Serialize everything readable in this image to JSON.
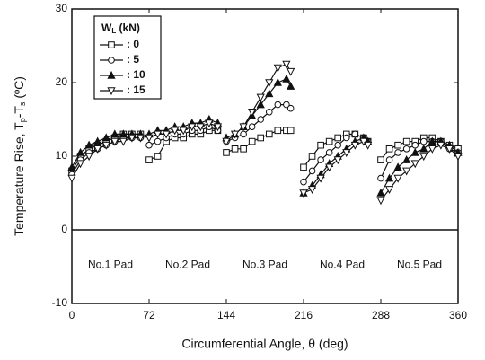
{
  "chart_data": {
    "type": "line",
    "x_label": "Circumferential Angle, θ (deg)",
    "y_label": {
      "a": "Temperature Rise, T",
      "sub1": "p",
      "b": "-T",
      "sub2": "s",
      "c": " (ºC)"
    },
    "legend_title": {
      "main": "W",
      "sub": "L",
      "rest": " (kN)"
    },
    "legend": "upper left",
    "annotations": [
      "No.1 Pad",
      "No.2 Pad",
      "No.3 Pad",
      "No.4 Pad",
      "No.5 Pad"
    ],
    "xlim": [
      0,
      360
    ],
    "xticks": [
      0,
      72,
      144,
      216,
      288,
      360
    ],
    "ylim": [
      -10,
      30
    ],
    "yticks": [
      -10,
      0,
      10,
      20,
      30
    ],
    "x": [
      0,
      8,
      16,
      24,
      32,
      40,
      48,
      56,
      64,
      null,
      72,
      80,
      88,
      96,
      104,
      112,
      120,
      128,
      136,
      null,
      144,
      152,
      160,
      168,
      176,
      184,
      192,
      200,
      204,
      null,
      216,
      224,
      232,
      240,
      248,
      256,
      264,
      272,
      276,
      null,
      288,
      296,
      304,
      312,
      320,
      328,
      336,
      344,
      352,
      360
    ],
    "series": [
      {
        "name": ": 0",
        "color": "#111111",
        "marker": "square",
        "values": [
          8,
          10,
          11,
          11.5,
          12,
          12.5,
          13,
          13,
          13,
          null,
          9.5,
          10,
          12,
          12.5,
          12.5,
          13,
          13,
          13.5,
          13.5,
          null,
          10.5,
          11,
          11,
          12,
          12.5,
          13,
          13.5,
          13.5,
          13.5,
          null,
          8.5,
          10,
          11.5,
          12,
          12.5,
          13,
          13,
          12.5,
          12,
          null,
          9.5,
          11,
          11.5,
          12,
          12,
          12.5,
          12.5,
          12,
          11.5,
          11
        ]
      },
      {
        "name": ": 5",
        "color": "#111111",
        "marker": "circle",
        "values": [
          7.5,
          9.5,
          10.5,
          11,
          11.5,
          12,
          12.5,
          12.5,
          12.5,
          null,
          11.5,
          12,
          12.5,
          13,
          13,
          13.5,
          13.5,
          14,
          13.5,
          null,
          12,
          12.5,
          13,
          14,
          15,
          16,
          17,
          17,
          16.5,
          null,
          6.5,
          8,
          9.5,
          10.5,
          11.5,
          12.5,
          13,
          12.5,
          12,
          null,
          7,
          9.5,
          10.5,
          11,
          11.5,
          12,
          12,
          12,
          11,
          10.5
        ]
      },
      {
        "name": ": 10",
        "color": "#111111",
        "marker": "triangle-up",
        "values": [
          8.5,
          10.5,
          11.5,
          12,
          12.5,
          13,
          13,
          13,
          13,
          null,
          13,
          13.5,
          13.5,
          14,
          14,
          14.5,
          14.5,
          15,
          14.5,
          null,
          12.5,
          13,
          14,
          15.5,
          17,
          18.5,
          20,
          20.5,
          19.5,
          null,
          5,
          6,
          7.5,
          9,
          10,
          11,
          12,
          12.5,
          12,
          null,
          5,
          7,
          8.5,
          9.5,
          10.5,
          11,
          12,
          12,
          11.5,
          10.5
        ]
      },
      {
        "name": ": 15",
        "color": "#111111",
        "marker": "triangle-down",
        "values": [
          7,
          9,
          10,
          11,
          11.5,
          12,
          12,
          12.5,
          12.5,
          null,
          12.5,
          13,
          13,
          13.5,
          13.5,
          14,
          14,
          14.5,
          14,
          null,
          12,
          13,
          14,
          16,
          18,
          20,
          22,
          22.5,
          21.5,
          null,
          5,
          5.5,
          7,
          8.5,
          9.5,
          10.5,
          11.5,
          12,
          11.5,
          null,
          4,
          5.5,
          7,
          8,
          9,
          10,
          11,
          11.5,
          11,
          10
        ]
      }
    ]
  }
}
